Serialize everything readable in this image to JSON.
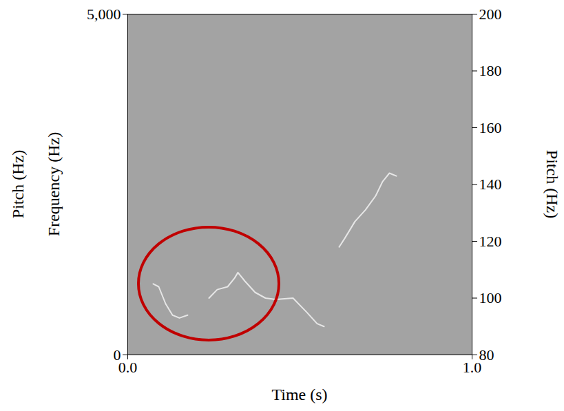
{
  "chart_data": {
    "type": "line",
    "xlabel": "Time (s)",
    "ylabel": "Frequency (Hz)",
    "y2label": "Pitch (Hz)",
    "annotations": [
      "Pitch (Hz)"
    ],
    "xlim": [
      0,
      1
    ],
    "xticks": [
      0,
      1
    ],
    "ylim": [
      0,
      5000
    ],
    "yticks": [
      0,
      5000
    ],
    "y2lim": [
      80,
      200
    ],
    "y2ticks": [
      80,
      100,
      120,
      140,
      160,
      180,
      200
    ],
    "x": [
      0.074,
      0.09,
      0.11,
      0.13,
      0.15,
      0.174,
      0.2,
      0.236,
      0.26,
      0.29,
      0.31,
      0.32,
      0.34,
      0.37,
      0.4,
      0.43,
      0.48,
      0.52,
      0.55,
      0.57,
      0.59,
      0.614,
      0.63,
      0.66,
      0.69,
      0.72,
      0.74,
      0.76,
      0.78
    ],
    "series": [
      {
        "values": [
          105,
          104,
          98,
          94,
          93,
          94,
          null,
          100,
          103,
          104,
          107,
          109,
          106,
          102,
          100,
          99.5,
          100,
          95,
          91,
          90,
          null,
          118,
          121,
          127,
          131,
          136,
          141,
          144,
          143
        ],
        "color": "#e6e6e6",
        "axis": "y2"
      }
    ]
  }
}
